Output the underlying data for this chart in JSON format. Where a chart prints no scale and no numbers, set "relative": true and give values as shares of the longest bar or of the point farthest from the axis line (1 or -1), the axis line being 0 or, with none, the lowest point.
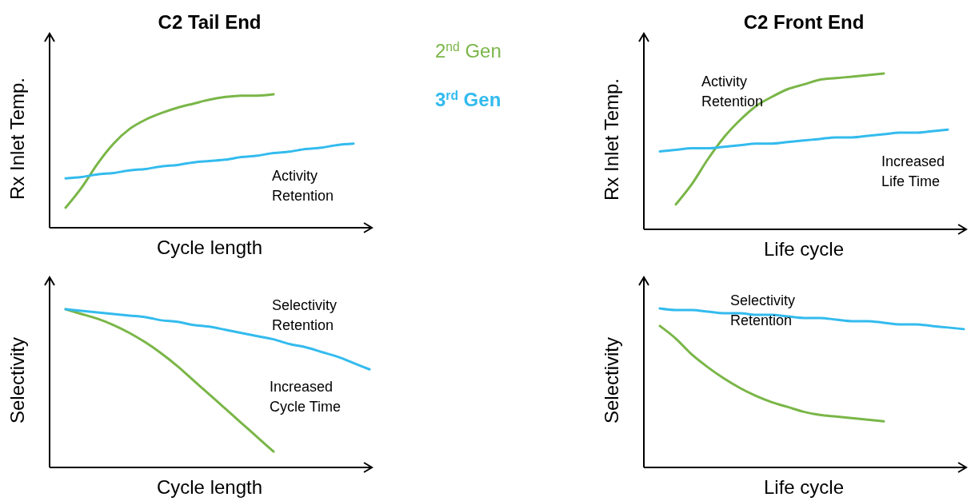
{
  "chart_data": [
    {
      "type": "line",
      "title": "C2 Tail End",
      "xlabel": "Cycle length",
      "ylabel": "Rx Inlet Temp.",
      "relative": true,
      "tick_labels": false,
      "legend": "right",
      "annotations": [
        "Activity\nRetention"
      ],
      "categories": [
        null,
        null,
        null,
        null,
        null,
        null,
        null,
        null,
        null,
        null,
        null,
        null,
        null,
        null,
        null,
        null,
        null,
        null,
        null,
        null,
        null
      ],
      "series": [
        {
          "name": "2$^{nd}$ Gen",
          "color": "#7ab648",
          "values": [
            null,
            0.15,
            0.3,
            0.48,
            0.63,
            0.74,
            0.81,
            0.86,
            0.9,
            0.93,
            0.96,
            0.98,
            0.99,
            0.99,
            1.0,
            null,
            null,
            null,
            null,
            null,
            null
          ]
        },
        {
          "name": "3$^{rd}$ Gen",
          "color": "#33bbee",
          "values": [
            null,
            0.37,
            0.38,
            0.4,
            0.41,
            0.43,
            0.44,
            0.46,
            0.47,
            0.49,
            0.5,
            0.51,
            0.53,
            0.54,
            0.56,
            0.57,
            0.59,
            0.6,
            0.62,
            0.63,
            null
          ]
        }
      ]
    },
    {
      "type": "line",
      "title": "C2 Front End",
      "xlabel": "Life cycle",
      "ylabel": "Rx Inlet Temp.",
      "relative": true,
      "tick_labels": false,
      "annotations": [
        "Activity\nRetention",
        "Increased\nLife Time"
      ],
      "categories": [
        null,
        null,
        null,
        null,
        null,
        null,
        null,
        null,
        null,
        null,
        null,
        null,
        null,
        null,
        null,
        null,
        null,
        null,
        null,
        null,
        null
      ],
      "series": [
        {
          "color": "#7ab648",
          "values": [
            null,
            null,
            0.16,
            0.29,
            0.45,
            0.59,
            0.7,
            0.79,
            0.85,
            0.9,
            0.93,
            0.96,
            0.97,
            0.98,
            0.99,
            1.0,
            null,
            null,
            null,
            null,
            null
          ]
        },
        {
          "color": "#33bbee",
          "values": [
            null,
            0.5,
            0.51,
            0.52,
            0.52,
            0.53,
            0.54,
            0.55,
            0.55,
            0.56,
            0.57,
            0.58,
            0.59,
            0.59,
            0.6,
            0.61,
            0.62,
            0.62,
            0.63,
            0.64,
            null
          ]
        }
      ]
    },
    {
      "type": "line",
      "xlabel": "Cycle length",
      "ylabel": "Selectivity",
      "relative": true,
      "tick_labels": false,
      "annotations": [
        "Selectivity\nRetention",
        "Increased\nCycle Time"
      ],
      "categories": [
        null,
        null,
        null,
        null,
        null,
        null,
        null,
        null,
        null,
        null,
        null,
        null,
        null,
        null,
        null,
        null,
        null,
        null,
        null,
        null,
        null
      ],
      "series": [
        {
          "color": "#7ab648",
          "values": [
            null,
            1.0,
            0.97,
            0.94,
            0.9,
            0.85,
            0.79,
            0.72,
            0.64,
            0.55,
            0.46,
            0.37,
            0.28,
            0.19,
            0.1,
            null,
            null,
            null,
            null,
            null,
            null
          ]
        },
        {
          "color": "#33bbee",
          "values": [
            null,
            1.0,
            0.99,
            0.98,
            0.97,
            0.96,
            0.95,
            0.93,
            0.92,
            0.9,
            0.89,
            0.87,
            0.85,
            0.83,
            0.81,
            0.78,
            0.76,
            0.73,
            0.7,
            0.66,
            0.62
          ]
        }
      ]
    },
    {
      "type": "line",
      "xlabel": "Life cycle",
      "ylabel": "Selectivity",
      "relative": true,
      "tick_labels": false,
      "annotations": [
        "Selectivity\nRetention"
      ],
      "categories": [
        null,
        null,
        null,
        null,
        null,
        null,
        null,
        null,
        null,
        null,
        null,
        null,
        null,
        null,
        null,
        null,
        null,
        null,
        null,
        null,
        null
      ],
      "series": [
        {
          "color": "#7ab648",
          "values": [
            null,
            0.89,
            0.81,
            0.71,
            0.63,
            0.56,
            0.5,
            0.45,
            0.41,
            0.38,
            0.35,
            0.33,
            0.32,
            0.31,
            0.3,
            0.29,
            null,
            null,
            null,
            null,
            null
          ]
        },
        {
          "color": "#33bbee",
          "values": [
            null,
            1.0,
            0.99,
            0.99,
            0.98,
            0.97,
            0.97,
            0.96,
            0.96,
            0.95,
            0.94,
            0.94,
            0.93,
            0.92,
            0.92,
            0.91,
            0.9,
            0.9,
            0.89,
            0.88,
            0.87
          ]
        }
      ]
    }
  ]
}
